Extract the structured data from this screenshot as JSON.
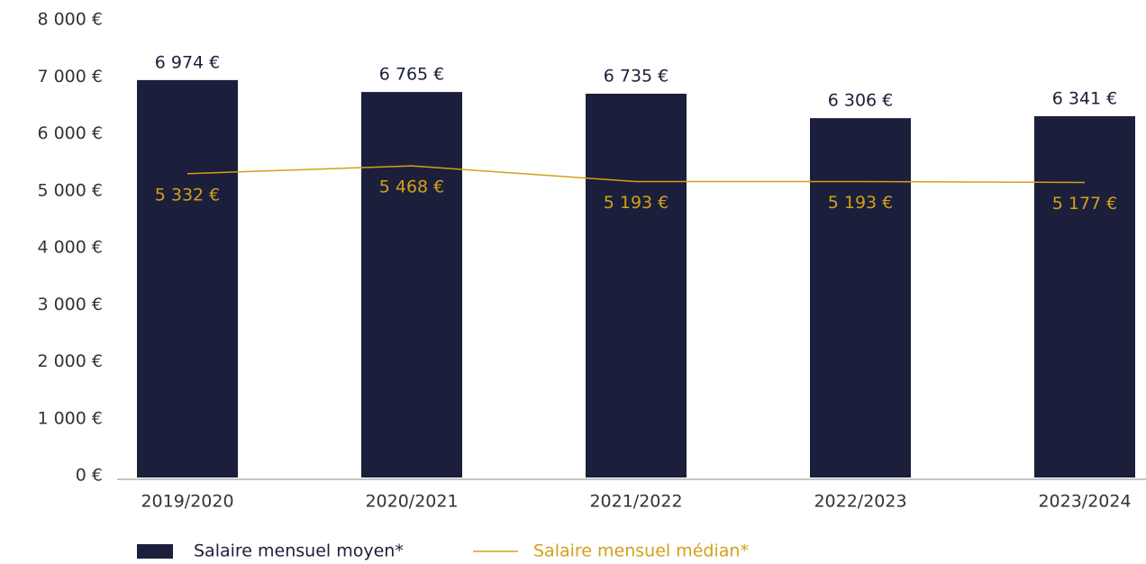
{
  "chart_data": {
    "type": "bar",
    "categories": [
      "2019/2020",
      "2020/2021",
      "2021/2022",
      "2022/2023",
      "2023/2024"
    ],
    "series": [
      {
        "name": "Salaire mensuel moyen*",
        "type": "bar",
        "color": "#1b1f3b",
        "values": [
          6974,
          6765,
          6735,
          6306,
          6341
        ],
        "value_labels": [
          "6 974 €",
          "6 765 €",
          "6 735 €",
          "6 306 €",
          "6 341 €"
        ]
      },
      {
        "name": "Salaire mensuel médian*",
        "type": "line",
        "color": "#d4a017",
        "values": [
          5332,
          5468,
          5193,
          5193,
          5177
        ],
        "value_labels": [
          "5 332 €",
          "5 468 €",
          "5 193 €",
          "5 193 €",
          "5 177 €"
        ]
      }
    ],
    "ylim": [
      0,
      8000
    ],
    "yticks": [
      {
        "value": 0,
        "label": "0 €"
      },
      {
        "value": 1000,
        "label": "1 000 €"
      },
      {
        "value": 2000,
        "label": "2 000 €"
      },
      {
        "value": 3000,
        "label": "3 000 €"
      },
      {
        "value": 4000,
        "label": "4 000 €"
      },
      {
        "value": 5000,
        "label": "5 000 €"
      },
      {
        "value": 6000,
        "label": "6 000 €"
      },
      {
        "value": 7000,
        "label": "7 000 €"
      },
      {
        "value": 8000,
        "label": "8 000 €"
      }
    ],
    "grid": false
  }
}
